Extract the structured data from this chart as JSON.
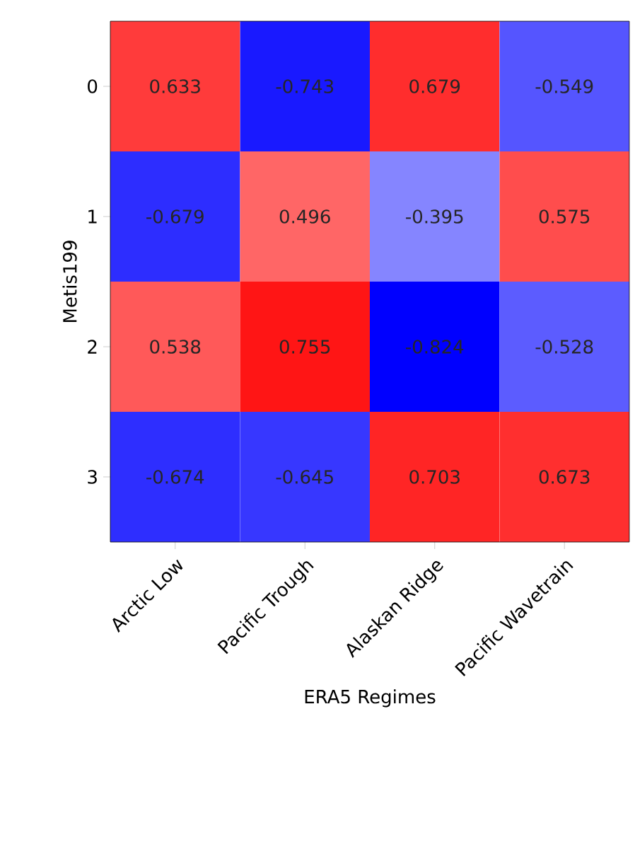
{
  "chart_data": {
    "type": "heatmap",
    "xlabel": "ERA5 Regimes",
    "ylabel": "Metis199",
    "categories": [
      "Arctic Low",
      "Pacific Trough",
      "Alaskan Ridge",
      "Pacific Wavetrain"
    ],
    "y_categories": [
      "0",
      "1",
      "2",
      "3"
    ],
    "cells": [
      [
        0.633,
        -0.743,
        0.679,
        -0.549
      ],
      [
        -0.679,
        0.496,
        -0.395,
        0.575
      ],
      [
        0.538,
        0.755,
        -0.824,
        -0.528
      ],
      [
        -0.674,
        -0.645,
        0.703,
        0.673
      ]
    ],
    "data_labels": true
  }
}
